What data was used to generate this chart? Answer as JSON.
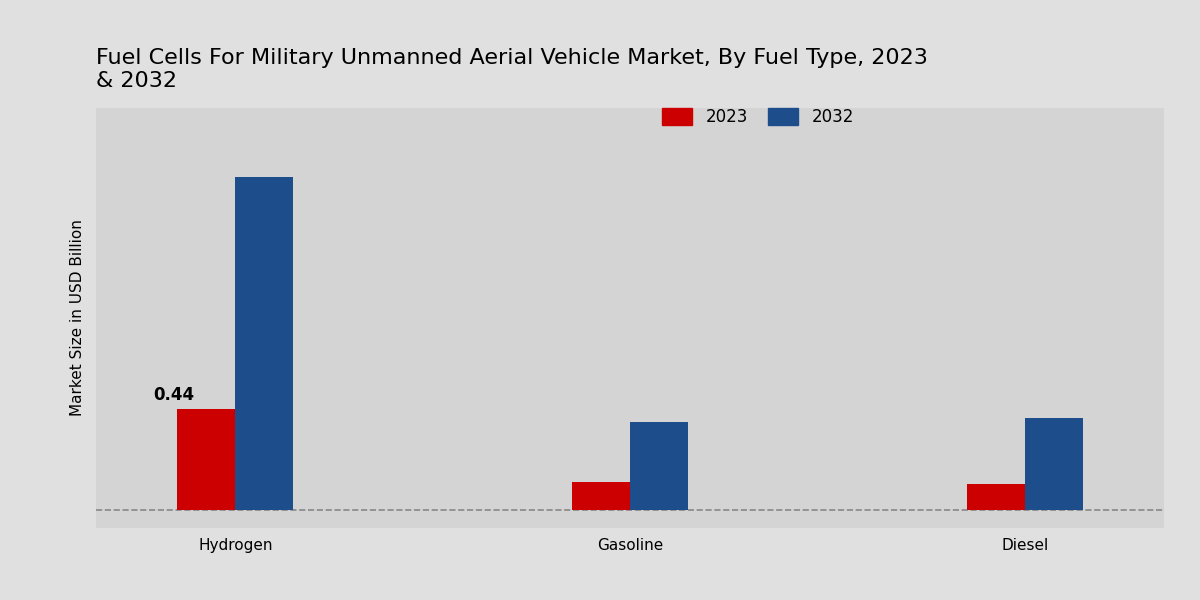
{
  "title": "Fuel Cells For Military Unmanned Aerial Vehicle Market, By Fuel Type, 2023\n& 2032",
  "ylabel": "Market Size in USD Billion",
  "categories": [
    "Hydrogen",
    "Gasoline",
    "Diesel"
  ],
  "values_2023": [
    0.44,
    0.12,
    0.11
  ],
  "values_2032": [
    1.45,
    0.38,
    0.4
  ],
  "color_2023": "#cc0000",
  "color_2032": "#1e4d8c",
  "bar_width": 0.25,
  "bar_annotation": "0.44",
  "background_color": "#e0e0e0",
  "plot_bg_color": "#d4d4d4",
  "legend_labels": [
    "2023",
    "2032"
  ],
  "dashed_line_y": 0.0,
  "title_fontsize": 16,
  "label_fontsize": 11,
  "tick_fontsize": 11
}
